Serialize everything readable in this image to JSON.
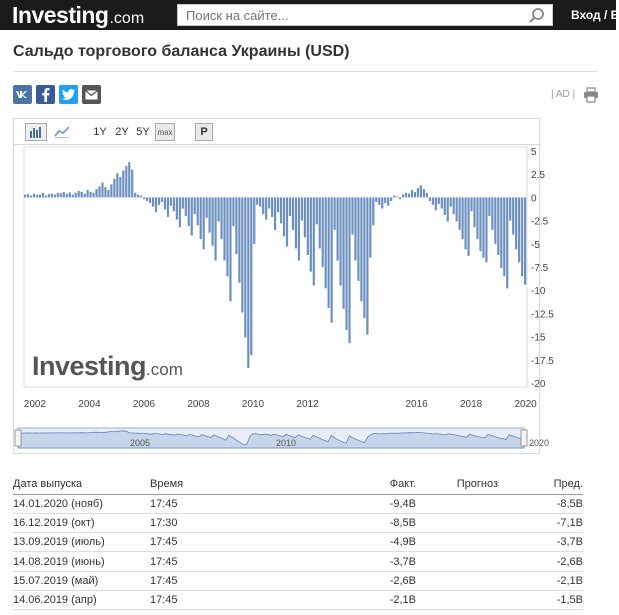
{
  "header": {
    "logo_main": "Investing",
    "logo_suffix": ".com",
    "search_placeholder": "Поиск на сайте...",
    "login_label": "Вход / Б"
  },
  "page_title": "Сальдо торгового баланса Украины (USD)",
  "share": {
    "vk": "vk",
    "facebook": "f",
    "twitter": "t",
    "email": "email"
  },
  "ad_label": "| AD |",
  "toolbar": {
    "ranges": [
      "1Y",
      "2Y",
      "5Y"
    ],
    "max_label": "max",
    "p_label": "P"
  },
  "watermark": {
    "main": "Investing",
    "suffix": ".com"
  },
  "colors": {
    "bar": "#6b8fbf",
    "header_bg": "#1a1a1a",
    "negative": "#d00"
  },
  "chart_data": {
    "type": "bar",
    "y_ticks": [
      5,
      2.5,
      0,
      -2.5,
      -5,
      -7.5,
      -10,
      -12.5,
      -15,
      -17.5,
      -20
    ],
    "ylim": [
      -20,
      5
    ],
    "x_ticks": [
      "2002",
      "2004",
      "2006",
      "2008",
      "2010",
      "2012",
      "2016",
      "2018",
      "2020"
    ],
    "x_tick_years": [
      2002,
      2004,
      2006,
      2008,
      2010,
      2012,
      2016,
      2018,
      2020
    ],
    "xlim": [
      2001.6,
      2020.05
    ],
    "series_start": 2001.6,
    "values": [
      0.3,
      0.35,
      0.2,
      0.4,
      0.25,
      0.3,
      0.5,
      0.2,
      0.35,
      0.4,
      0.3,
      0.5,
      0.45,
      0.6,
      0.4,
      0.55,
      0.3,
      0.5,
      0.7,
      0.6,
      0.4,
      0.8,
      0.6,
      0.5,
      0.9,
      1.2,
      1.6,
      1.1,
      0.8,
      1.4,
      2.0,
      2.6,
      2.2,
      2.9,
      3.4,
      3.8,
      3.0,
      0.5,
      0.3,
      0.2,
      -0.2,
      -0.4,
      -0.6,
      -1.0,
      -1.6,
      -0.8,
      -0.5,
      -1.3,
      -2.1,
      -0.9,
      -1.5,
      -2.4,
      -3.2,
      -1.2,
      -2.0,
      -3.1,
      -4.1,
      -1.8,
      -3.0,
      -4.5,
      -5.6,
      -2.2,
      -3.8,
      -5.2,
      -6.8,
      -2.6,
      -4.5,
      -6.8,
      -8.5,
      -11.2,
      -3.1,
      -6.1,
      -9.2,
      -12.4,
      -15.1,
      -18.4,
      -17.0,
      -5.0,
      -0.8,
      -1.0,
      -1.8,
      -2.4,
      -1.2,
      -2.1,
      -3.5,
      -1.6,
      -2.8,
      -4.2,
      -5.3,
      -2.0,
      -3.5,
      -5.5,
      -6.8,
      -2.5,
      -4.3,
      -6.2,
      -8.0,
      -9.5,
      -2.9,
      -5.5,
      -7.5,
      -9.8,
      -11.9,
      -13.5,
      -3.5,
      -6.8,
      -9.5,
      -12.0,
      -14.3,
      -15.7,
      -4.0,
      -6.8,
      -9.0,
      -11.2,
      -13.0,
      -14.8,
      -6.5,
      -3.0,
      -0.5,
      -0.8,
      -1.2,
      -0.6,
      -0.9,
      -0.4,
      0.2,
      0.1,
      -0.2,
      0.3,
      0.5,
      0.4,
      0.8,
      0.6,
      1.0,
      1.3,
      0.9,
      0.5,
      -0.4,
      -0.8,
      -1.4,
      -0.7,
      -1.2,
      -1.9,
      -2.6,
      -1.0,
      -1.8,
      -2.6,
      -3.5,
      -4.5,
      -5.6,
      -6.3,
      -1.5,
      -3.2,
      -4.5,
      -5.8,
      -6.5,
      -7.0,
      -2.0,
      -3.5,
      -5.0,
      -6.2,
      -7.6,
      -8.5,
      -9.8,
      -2.5,
      -4.0,
      -5.6,
      -7.0,
      -8.5,
      -9.4
    ]
  },
  "navigator": {
    "labels": [
      "2005",
      "2010",
      "2020"
    ]
  },
  "table": {
    "headers": {
      "date": "Дата выпуска",
      "time": "Время",
      "actual": "Факт.",
      "forecast": "Прогноз",
      "previous": "Пред."
    },
    "rows": [
      {
        "date": "14.01.2020 (нояб)",
        "time": "17:45",
        "actual": "-9,4B",
        "forecast": "",
        "previous": "-8,5B",
        "prev_red": true
      },
      {
        "date": "16.12.2019 (окт)",
        "time": "17:30",
        "actual": "-8,5B",
        "forecast": "",
        "previous": "-7,1B",
        "prev_red": false
      },
      {
        "date": "13.09.2019 (июль)",
        "time": "17:45",
        "actual": "-4,9B",
        "forecast": "",
        "previous": "-3,7B",
        "prev_red": false
      },
      {
        "date": "14.08.2019 (июнь)",
        "time": "17:45",
        "actual": "-3,7B",
        "forecast": "",
        "previous": "-2,6B",
        "prev_red": false
      },
      {
        "date": "15.07.2019 (май)",
        "time": "17:45",
        "actual": "-2,6B",
        "forecast": "",
        "previous": "-2,1B",
        "prev_red": false
      },
      {
        "date": "14.06.2019 (апр)",
        "time": "17:45",
        "actual": "-2,1B",
        "forecast": "",
        "previous": "-1,5B",
        "prev_red": false
      }
    ]
  }
}
